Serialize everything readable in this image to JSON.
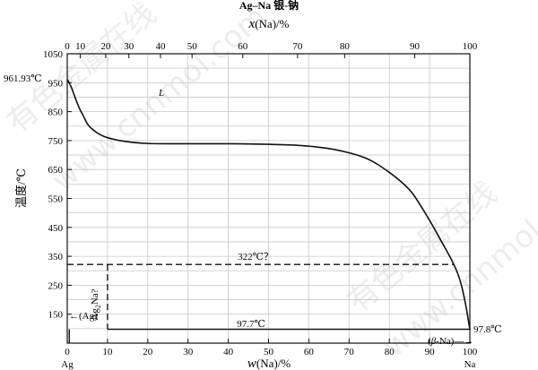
{
  "title": "Ag–Na   银-钠",
  "top_axis": {
    "label_var": "x",
    "label_rest": "(Na)/%",
    "ticks": [
      "0",
      "10",
      "20",
      "30",
      "40",
      "50",
      "60",
      "70",
      "80",
      "90",
      "100"
    ],
    "tick_w": [
      0,
      3.25,
      9.55,
      15.3,
      23.15,
      31.0,
      43.6,
      57.2,
      68.9,
      86.3,
      100
    ]
  },
  "bottom_axis": {
    "label_var": "w",
    "label_rest": "(Na)/%",
    "ticks": [
      "0",
      "10",
      "20",
      "30",
      "40",
      "50",
      "60",
      "70",
      "80",
      "90",
      "100"
    ],
    "end_left": "Ag",
    "end_right": "Na"
  },
  "left_axis": {
    "label": "温度/℃",
    "ticks": [
      "1050",
      "950",
      "850",
      "750",
      "650",
      "550",
      "450",
      "350",
      "250",
      "150"
    ]
  },
  "annotations": {
    "ag_melt": "961.93℃",
    "liquid": "L",
    "monotectic": "322℃？",
    "compound": "Ag2Na?",
    "compound_base": "Ag",
    "compound_sub": "2",
    "compound_rest": "Na?",
    "eutectic": "97.7℃",
    "na_melt": "97.8℃",
    "ag_phase": "←(Ag)",
    "na_phase_open": "(",
    "na_phase_beta": "β",
    "na_phase_close": "-Na)",
    "na_phase_arrow": "—→"
  },
  "watermarks": [
    "有色金属在线",
    "www.cnnmol.com"
  ],
  "colors": {
    "line": "#111111",
    "grid": "#c8c8c8",
    "background": "#ffffff"
  },
  "chart_data": {
    "type": "phase-diagram",
    "title": "Ag–Na   银-钠",
    "xlabel": "w(Na)/%",
    "x2label": "x(Na)/%",
    "ylabel": "温度/℃",
    "xlim": [
      0,
      100
    ],
    "ylim": [
      50,
      1050
    ],
    "grid": true,
    "liquidus": {
      "x": [
        0,
        1,
        2,
        3,
        4,
        5,
        6,
        8,
        10,
        14,
        20,
        30,
        40,
        50,
        58,
        66,
        74,
        80,
        85,
        88,
        91,
        93,
        95,
        96,
        97,
        98,
        99,
        99.5,
        100
      ],
      "y": [
        961.93,
        935,
        897,
        862,
        835,
        808,
        792,
        772,
        760,
        748,
        740,
        739,
        739,
        737,
        733,
        720,
        690,
        640,
        580,
        520,
        450,
        400,
        350,
        322,
        290,
        245,
        180,
        140,
        97.8
      ]
    },
    "isotherms": [
      {
        "label": "322℃？",
        "y": 322,
        "x_range": [
          0,
          96
        ],
        "style": "dashed"
      },
      {
        "label": "97.7℃",
        "y": 97.7,
        "x_range": [
          10,
          99.9
        ],
        "style": "solid"
      }
    ],
    "phase_labels": [
      "L",
      "(Ag)",
      "(β-Na)",
      "Ag2Na?"
    ]
  }
}
